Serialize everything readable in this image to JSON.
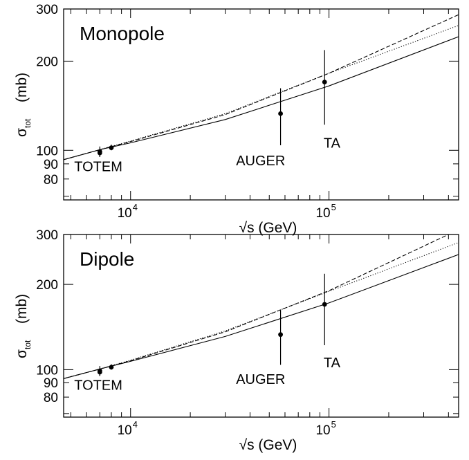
{
  "chart_data": [
    {
      "type": "line",
      "title": "Monopole",
      "xlabel": "√s (GeV)",
      "ylabel": "σ",
      "ylabel_sub": "tot",
      "ylabel_unit": "(mb)",
      "xscale": "log",
      "yscale": "log",
      "xlim": [
        4600,
        450000
      ],
      "ylim": [
        68,
        300
      ],
      "yticks": [
        80,
        90,
        100,
        200,
        300
      ],
      "ytick_labels": [
        "80",
        "90",
        "100",
        "200",
        "300"
      ],
      "xtick_labels": [
        {
          "base": "10",
          "exp": "4",
          "value": 10000
        },
        {
          "base": "10",
          "exp": "5",
          "value": 100000
        }
      ],
      "series": [
        {
          "style": "solid",
          "x": [
            4600,
            7000,
            10000,
            30000,
            100000,
            450000
          ],
          "y": [
            93,
            100.5,
            106,
            127,
            165,
            242
          ]
        },
        {
          "style": "dashed",
          "x": [
            4600,
            7000,
            10000,
            30000,
            100000,
            450000
          ],
          "y": [
            93,
            100.5,
            107,
            132,
            182,
            287
          ]
        },
        {
          "style": "dotted",
          "x": [
            4600,
            7000,
            10000,
            30000,
            100000,
            450000
          ],
          "y": [
            93,
            100.5,
            107.5,
            133,
            182,
            264
          ]
        }
      ],
      "points": [
        {
          "label": "TOTEM",
          "x": 7000,
          "y": 99,
          "ylo": 95,
          "yhi": 103
        },
        {
          "label": "TOTEM",
          "x": 7000,
          "y": 98,
          "ylo": 95,
          "yhi": 101
        },
        {
          "label": "TOTEM",
          "x": 8000,
          "y": 102,
          "ylo": 100,
          "yhi": 104.5
        },
        {
          "label": "AUGER",
          "x": 57000,
          "y": 133,
          "ylo": 104,
          "yhi": 162
        },
        {
          "label": "TA",
          "x": 95000,
          "y": 170,
          "ylo": 122,
          "yhi": 218
        }
      ],
      "annotations": [
        {
          "text": "TOTEM",
          "x": 5200,
          "y": 85
        },
        {
          "text": "AUGER",
          "x": 34000,
          "y": 89
        },
        {
          "text": "TA",
          "x": 94000,
          "y": 102
        }
      ]
    },
    {
      "type": "line",
      "title": "Dipole",
      "xlabel": "√s (GeV)",
      "ylabel": "σ",
      "ylabel_sub": "tot",
      "ylabel_unit": "(mb)",
      "xscale": "log",
      "yscale": "log",
      "xlim": [
        4600,
        450000
      ],
      "ylim": [
        68,
        300
      ],
      "yticks": [
        80,
        90,
        100,
        200,
        300
      ],
      "ytick_labels": [
        "80",
        "90",
        "100",
        "200",
        "300"
      ],
      "xtick_labels": [
        {
          "base": "10",
          "exp": "4",
          "value": 10000
        },
        {
          "base": "10",
          "exp": "5",
          "value": 100000
        }
      ],
      "series": [
        {
          "style": "solid",
          "x": [
            4600,
            7000,
            10000,
            30000,
            100000,
            450000
          ],
          "y": [
            93,
            100.5,
            107,
            131,
            172,
            255
          ]
        },
        {
          "style": "dashed",
          "x": [
            4600,
            7000,
            10000,
            30000,
            100000,
            400000
          ],
          "y": [
            93,
            100.5,
            107.5,
            136,
            190,
            300
          ]
        },
        {
          "style": "dotted",
          "x": [
            4600,
            7000,
            10000,
            30000,
            100000,
            450000
          ],
          "y": [
            93,
            100.5,
            108,
            137,
            189,
            281
          ]
        }
      ],
      "points": [
        {
          "label": "TOTEM",
          "x": 7000,
          "y": 99,
          "ylo": 95,
          "yhi": 103
        },
        {
          "label": "TOTEM",
          "x": 7000,
          "y": 98,
          "ylo": 95,
          "yhi": 101
        },
        {
          "label": "TOTEM",
          "x": 8000,
          "y": 102,
          "ylo": 100,
          "yhi": 104.5
        },
        {
          "label": "AUGER",
          "x": 57000,
          "y": 133,
          "ylo": 104,
          "yhi": 162
        },
        {
          "label": "TA",
          "x": 95000,
          "y": 170,
          "ylo": 122,
          "yhi": 218
        }
      ],
      "annotations": [
        {
          "text": "TOTEM",
          "x": 5200,
          "y": 85
        },
        {
          "text": "AUGER",
          "x": 34000,
          "y": 89
        },
        {
          "text": "TA",
          "x": 94000,
          "y": 102
        }
      ]
    }
  ]
}
